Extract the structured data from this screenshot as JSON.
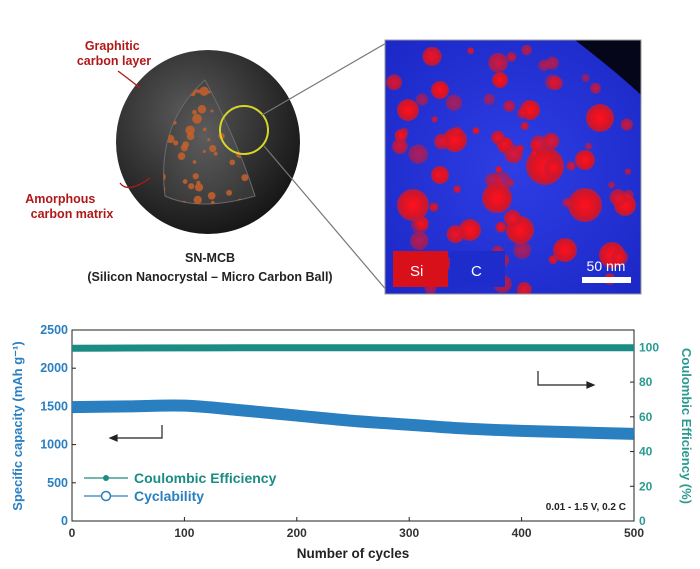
{
  "schematic": {
    "label_graphitic": [
      "Graphitic",
      "carbon layer"
    ],
    "label_amorphous": [
      "Amorphous",
      "carbon matrix"
    ],
    "name": "SN-MCB",
    "subtitle": "(Silicon Nanocrystal – Micro Carbon Ball)"
  },
  "micrograph": {
    "legend_si": "Si",
    "legend_c": "C",
    "scale_bar": "50 nm",
    "colors": {
      "si": "#d8101a",
      "c": "#2332d8"
    }
  },
  "chart_data": {
    "type": "line",
    "xlabel": "Number of cycles",
    "ylabel_left": "Specific capacity (mAh g⁻¹)",
    "ylabel_right": "Coulombic Efficiency (%)",
    "xlim": [
      0,
      500
    ],
    "ylim_left": [
      0,
      2500
    ],
    "ylim_right": [
      0,
      110
    ],
    "x_ticks": [
      "0",
      "100",
      "200",
      "300",
      "400",
      "500"
    ],
    "y_ticks_left": [
      "0",
      "500",
      "1000",
      "1500",
      "2000",
      "2500"
    ],
    "y_ticks_right": [
      "0",
      "20",
      "40",
      "60",
      "80",
      "100"
    ],
    "series": [
      {
        "name": "Coulombic Efficiency",
        "axis": "right",
        "color": "#1a8c84",
        "x": [
          0,
          50,
          100,
          150,
          200,
          250,
          300,
          350,
          400,
          450,
          500
        ],
        "values": [
          99.5,
          99.6,
          99.7,
          99.8,
          99.8,
          99.8,
          99.8,
          99.8,
          99.8,
          99.8,
          99.8
        ]
      },
      {
        "name": "Cyclability",
        "axis": "left",
        "color": "#2a7fc0",
        "x": [
          0,
          50,
          100,
          150,
          200,
          250,
          300,
          350,
          400,
          450,
          500
        ],
        "values": [
          1490,
          1500,
          1510,
          1450,
          1380,
          1310,
          1260,
          1210,
          1180,
          1160,
          1140
        ]
      }
    ],
    "legend": [
      "Coulombic Efficiency",
      "Cyclability"
    ],
    "annotation": "0.01 - 1.5 V, 0.2 C"
  }
}
